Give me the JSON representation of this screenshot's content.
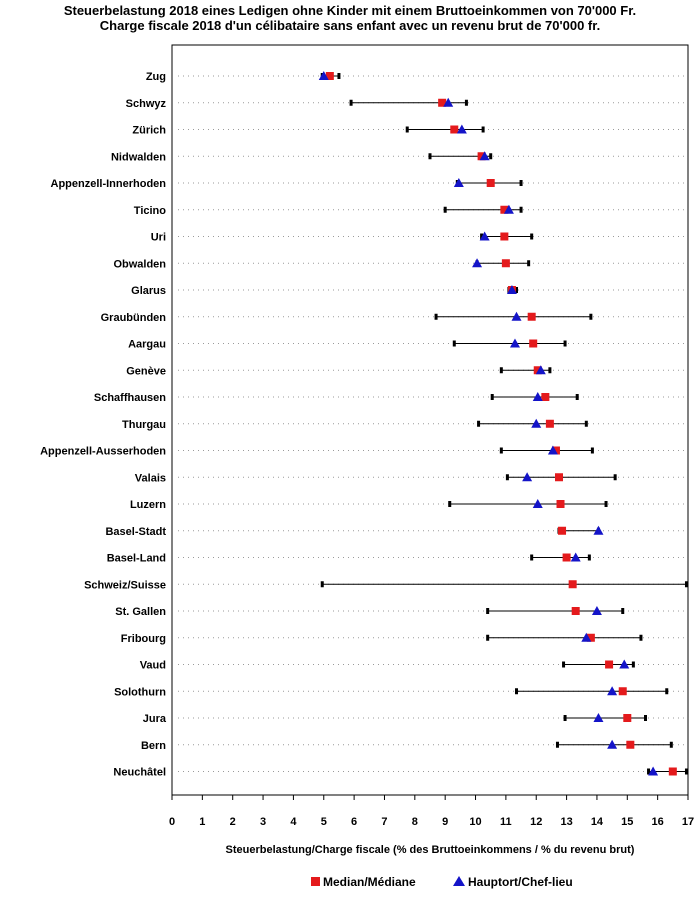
{
  "chart_data": {
    "type": "dot-range",
    "title": "Steuerbelastung 2018 eines Ledigen ohne Kinder mit einem Bruttoeinkommen von 70'000 Fr.",
    "subtitle": "Charge fiscale 2018 d'un célibataire sans enfant avec un revenu brut de 70'000 fr.",
    "xlabel": "Steuerbelastung/Charge fiscale (% des Bruttoeinkommens / % du revenu brut)",
    "xlim": [
      0,
      17
    ],
    "xticks": [
      "0",
      "1",
      "2",
      "3",
      "4",
      "5",
      "6",
      "7",
      "8",
      "9",
      "10",
      "11",
      "12",
      "13",
      "14",
      "15",
      "16",
      "17"
    ],
    "legend": {
      "median_label": "Median/Médiane",
      "capital_label": "Hauptort/Chef-lieu",
      "position": "bottom-center"
    },
    "colors": {
      "median": "#e41a1c",
      "capital": "#1414c8",
      "range": "#000000",
      "grid": "#9a9a9a"
    },
    "cantons": [
      {
        "name": "Zug",
        "min": 4.95,
        "max": 5.5,
        "median": 5.2,
        "capital": 5.0
      },
      {
        "name": "Schwyz",
        "min": 5.9,
        "max": 9.7,
        "median": 8.9,
        "capital": 9.1
      },
      {
        "name": "Zürich",
        "min": 7.75,
        "max": 10.25,
        "median": 9.3,
        "capital": 9.55
      },
      {
        "name": "Nidwalden",
        "min": 8.5,
        "max": 10.5,
        "median": 10.2,
        "capital": 10.3
      },
      {
        "name": "Appenzell-Innerhoden",
        "min": 9.4,
        "max": 11.5,
        "median": 10.5,
        "capital": 9.45
      },
      {
        "name": "Ticino",
        "min": 9.0,
        "max": 11.5,
        "median": 10.95,
        "capital": 11.1
      },
      {
        "name": "Uri",
        "min": 10.2,
        "max": 11.85,
        "median": 10.95,
        "capital": 10.3
      },
      {
        "name": "Obwalden",
        "min": 10.05,
        "max": 11.75,
        "median": 11.0,
        "capital": 10.05
      },
      {
        "name": "Glarus",
        "min": 11.1,
        "max": 11.35,
        "median": 11.2,
        "capital": 11.2
      },
      {
        "name": "Graubünden",
        "min": 8.7,
        "max": 13.8,
        "median": 11.85,
        "capital": 11.35
      },
      {
        "name": "Aargau",
        "min": 9.3,
        "max": 12.95,
        "median": 11.9,
        "capital": 11.3
      },
      {
        "name": "Genève",
        "min": 10.85,
        "max": 12.45,
        "median": 12.05,
        "capital": 12.15
      },
      {
        "name": "Schaffhausen",
        "min": 10.55,
        "max": 13.35,
        "median": 12.3,
        "capital": 12.05
      },
      {
        "name": "Thurgau",
        "min": 10.1,
        "max": 13.65,
        "median": 12.45,
        "capital": 12.0
      },
      {
        "name": "Appenzell-Ausserhoden",
        "min": 10.85,
        "max": 13.85,
        "median": 12.65,
        "capital": 12.55
      },
      {
        "name": "Valais",
        "min": 11.05,
        "max": 14.6,
        "median": 12.75,
        "capital": 11.7
      },
      {
        "name": "Luzern",
        "min": 9.15,
        "max": 14.3,
        "median": 12.8,
        "capital": 12.05
      },
      {
        "name": "Basel-Stadt",
        "min": 12.75,
        "max": 14.05,
        "median": 12.85,
        "capital": 14.05
      },
      {
        "name": "Basel-Land",
        "min": 11.85,
        "max": 13.75,
        "median": 13.0,
        "capital": 13.3
      },
      {
        "name": "Schweiz/Suisse",
        "min": 4.95,
        "max": 16.95,
        "median": 13.2,
        "capital": null
      },
      {
        "name": "St. Gallen",
        "min": 10.4,
        "max": 14.85,
        "median": 13.3,
        "capital": 14.0
      },
      {
        "name": "Fribourg",
        "min": 10.4,
        "max": 15.45,
        "median": 13.8,
        "capital": 13.65
      },
      {
        "name": "Vaud",
        "min": 12.9,
        "max": 15.2,
        "median": 14.4,
        "capital": 14.9
      },
      {
        "name": "Solothurn",
        "min": 11.35,
        "max": 16.3,
        "median": 14.85,
        "capital": 14.5
      },
      {
        "name": "Jura",
        "min": 12.95,
        "max": 15.6,
        "median": 15.0,
        "capital": 14.05
      },
      {
        "name": "Bern",
        "min": 12.7,
        "max": 16.45,
        "median": 15.1,
        "capital": 14.5
      },
      {
        "name": "Neuchâtel",
        "min": 15.7,
        "max": 16.95,
        "median": 16.5,
        "capital": 15.85
      }
    ]
  }
}
